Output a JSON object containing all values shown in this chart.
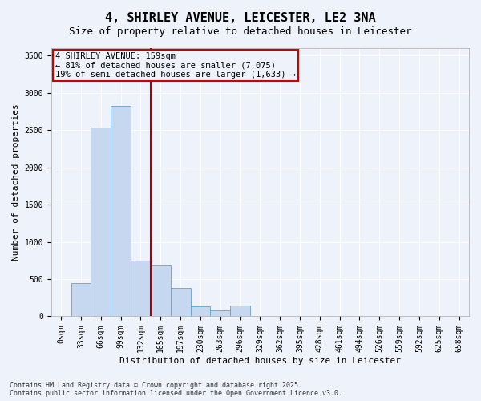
{
  "title_line1": "4, SHIRLEY AVENUE, LEICESTER, LE2 3NA",
  "title_line2": "Size of property relative to detached houses in Leicester",
  "xlabel": "Distribution of detached houses by size in Leicester",
  "ylabel": "Number of detached properties",
  "categories": [
    "0sqm",
    "33sqm",
    "66sqm",
    "99sqm",
    "132sqm",
    "165sqm",
    "197sqm",
    "230sqm",
    "263sqm",
    "296sqm",
    "329sqm",
    "362sqm",
    "395sqm",
    "428sqm",
    "461sqm",
    "494sqm",
    "526sqm",
    "559sqm",
    "592sqm",
    "625sqm",
    "658sqm"
  ],
  "bar_values": [
    0,
    450,
    2530,
    2820,
    750,
    680,
    380,
    130,
    80,
    140,
    0,
    0,
    0,
    0,
    0,
    0,
    0,
    0,
    0,
    0,
    0
  ],
  "bar_color": "#c5d8f0",
  "bar_edge_color": "#6aa0cc",
  "vline_color": "#aa0000",
  "annotation_text": "4 SHIRLEY AVENUE: 159sqm\n← 81% of detached houses are smaller (7,075)\n19% of semi-detached houses are larger (1,633) →",
  "annotation_box_color": "#cc0000",
  "ylim": [
    0,
    3600
  ],
  "yticks": [
    0,
    500,
    1000,
    1500,
    2000,
    2500,
    3000,
    3500
  ],
  "bg_color": "#eef2fa",
  "grid_color": "#ffffff",
  "footnote": "Contains HM Land Registry data © Crown copyright and database right 2025.\nContains public sector information licensed under the Open Government Licence v3.0.",
  "title_fontsize": 11,
  "subtitle_fontsize": 9,
  "axis_label_fontsize": 8,
  "annotation_fontsize": 7.5,
  "tick_fontsize": 7,
  "footnote_fontsize": 6
}
